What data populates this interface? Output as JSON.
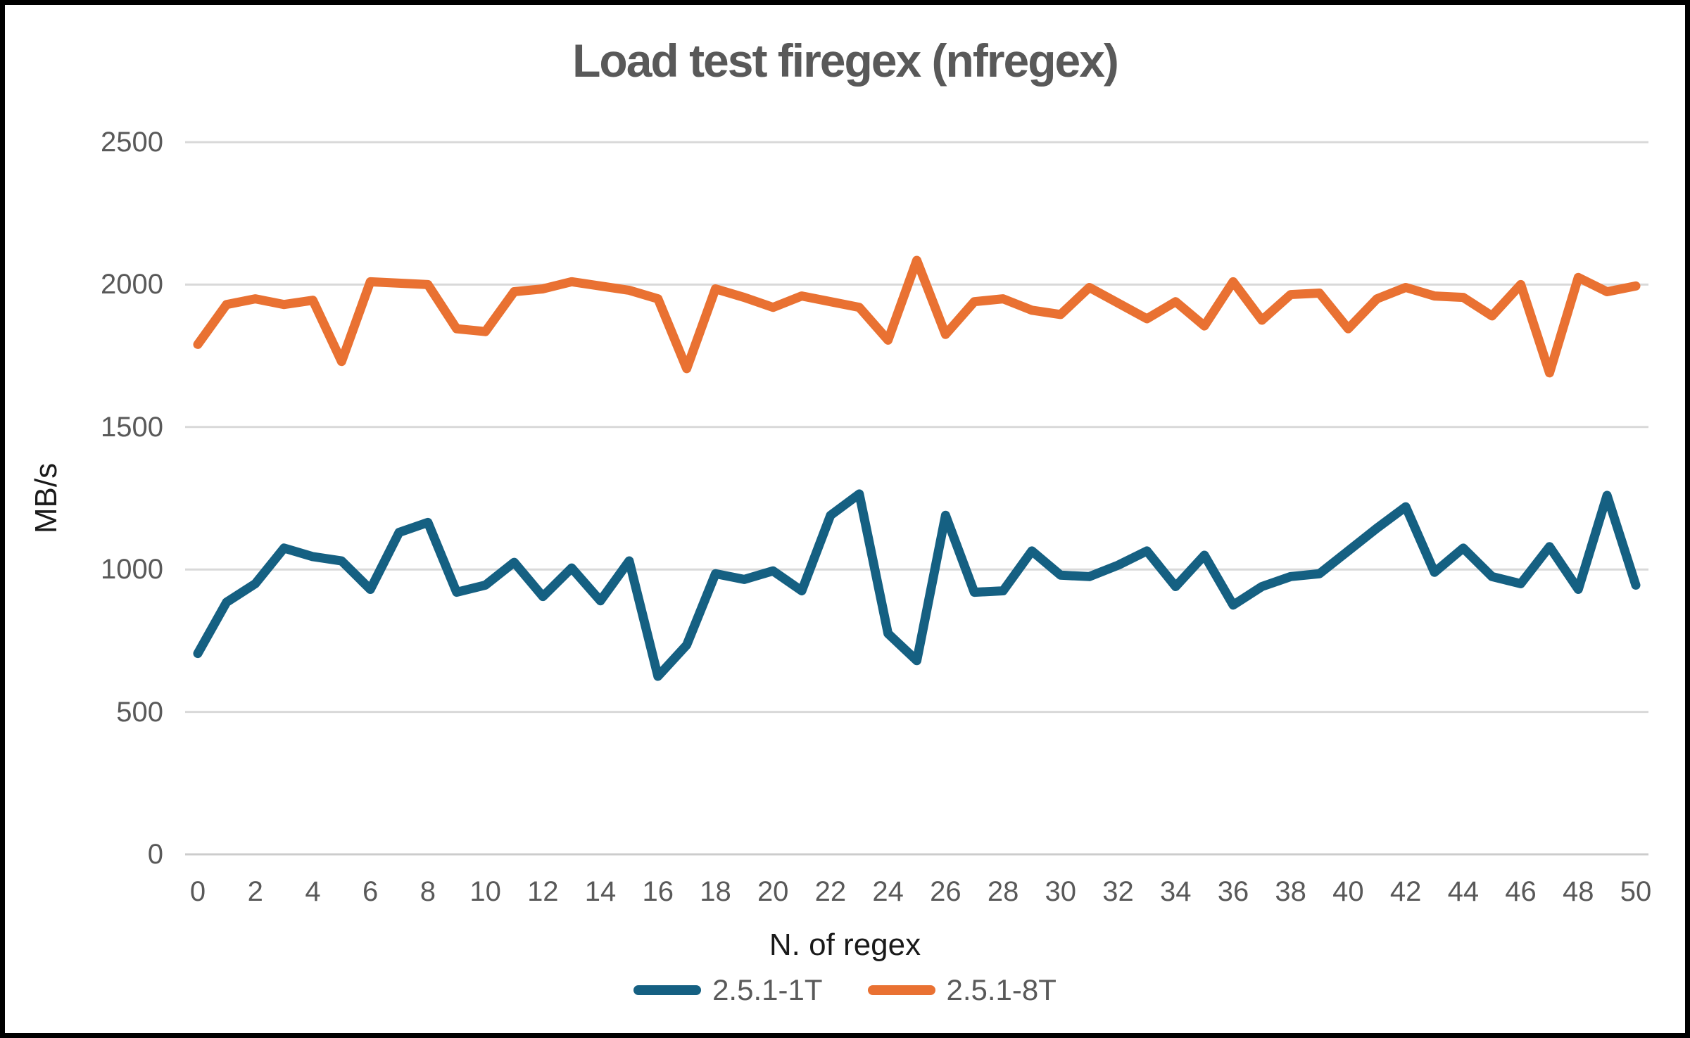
{
  "title": "Load test firegex (nfregex)",
  "chart_data": {
    "type": "line",
    "title": "Load test firegex (nfregex)",
    "xlabel": "N. of regex",
    "ylabel": "MB/s",
    "xlim": [
      0,
      50
    ],
    "ylim": [
      0,
      2500
    ],
    "x_tick_labels": [
      0,
      2,
      4,
      6,
      8,
      10,
      12,
      14,
      16,
      18,
      20,
      22,
      24,
      26,
      28,
      30,
      32,
      34,
      36,
      38,
      40,
      42,
      44,
      46,
      48,
      50
    ],
    "y_ticks": [
      0,
      500,
      1000,
      1500,
      2000,
      2500
    ],
    "grid": "horizontal",
    "legend_position": "bottom",
    "x": [
      0,
      1,
      2,
      3,
      4,
      5,
      6,
      7,
      8,
      9,
      10,
      11,
      12,
      13,
      14,
      15,
      16,
      17,
      18,
      19,
      20,
      21,
      22,
      23,
      24,
      25,
      26,
      27,
      28,
      29,
      30,
      31,
      32,
      33,
      34,
      35,
      36,
      37,
      38,
      39,
      40,
      41,
      42,
      43,
      44,
      45,
      46,
      47,
      48,
      49,
      50
    ],
    "series": [
      {
        "name": "2.5.1-1T",
        "color": "#156082",
        "values": [
          705,
          885,
          950,
          1075,
          1045,
          1030,
          930,
          1130,
          1165,
          920,
          945,
          1025,
          905,
          1005,
          890,
          1030,
          625,
          735,
          985,
          965,
          995,
          925,
          1190,
          1265,
          775,
          680,
          1190,
          920,
          925,
          1065,
          980,
          975,
          1015,
          1065,
          940,
          1050,
          875,
          940,
          975,
          985,
          1065,
          1145,
          1220,
          990,
          1075,
          975,
          950,
          1080,
          930,
          1260,
          945
        ]
      },
      {
        "name": "2.5.1-8T",
        "color": "#E97132",
        "values": [
          1790,
          1930,
          1950,
          1930,
          1945,
          1730,
          2010,
          2005,
          2000,
          1845,
          1835,
          1975,
          1985,
          2010,
          1995,
          1980,
          1950,
          1705,
          1985,
          1955,
          1920,
          1960,
          1940,
          1920,
          1805,
          2085,
          1825,
          1940,
          1950,
          1910,
          1895,
          1990,
          1935,
          1880,
          1940,
          1855,
          2010,
          1875,
          1965,
          1970,
          1845,
          1950,
          1990,
          1960,
          1955,
          1890,
          2000,
          1690,
          2025,
          1975,
          1995
        ]
      }
    ],
    "style": {
      "grid_color": "#D9D9D9",
      "baseline_color": "#CCCCCC",
      "title_color": "#595959",
      "tick_color": "#595959",
      "axis_title_color": "#1A1A1A",
      "line_width": 13
    }
  }
}
